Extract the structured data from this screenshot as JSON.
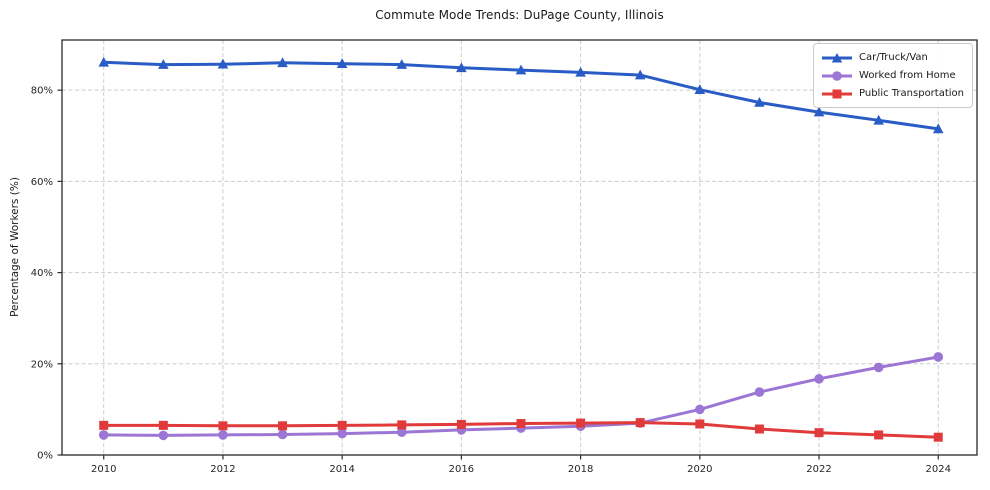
{
  "chart_data": {
    "type": "line",
    "title": "Commute Mode Trends: DuPage County, Illinois",
    "xlabel": "",
    "ylabel": "Percentage of Workers (%)",
    "x": [
      2010,
      2011,
      2012,
      2013,
      2014,
      2015,
      2016,
      2017,
      2018,
      2019,
      2020,
      2021,
      2022,
      2023,
      2024
    ],
    "series": [
      {
        "name": "Car/Truck/Van",
        "color": "#2a5cc5",
        "marker": "triangle",
        "values": [
          86.1,
          85.6,
          85.7,
          86.0,
          85.8,
          85.6,
          84.9,
          84.4,
          83.9,
          83.3,
          80.1,
          77.3,
          75.2,
          73.4,
          71.5
        ]
      },
      {
        "name": "Worked from Home",
        "color": "#9b76d4",
        "marker": "circle",
        "values": [
          4.4,
          4.3,
          4.4,
          4.5,
          4.7,
          5.0,
          5.5,
          5.9,
          6.3,
          7.0,
          10.0,
          13.8,
          16.7,
          19.2,
          21.5
        ]
      },
      {
        "name": "Public Transportation",
        "color": "#e03a3a",
        "marker": "square",
        "values": [
          6.5,
          6.5,
          6.4,
          6.4,
          6.5,
          6.6,
          6.7,
          6.9,
          7.0,
          7.1,
          6.8,
          5.7,
          4.9,
          4.4,
          3.9
        ]
      }
    ],
    "x_ticks": [
      2010,
      2012,
      2014,
      2016,
      2018,
      2020,
      2022,
      2024
    ],
    "x_tick_labels": [
      "2010",
      "2012",
      "2014",
      "2016",
      "2018",
      "2020",
      "2022",
      "2024"
    ],
    "y_ticks": [
      0,
      20,
      40,
      60,
      80
    ],
    "y_tick_labels": [
      "0%",
      "20%",
      "40%",
      "60%",
      "80%"
    ],
    "xlim": [
      2009.3,
      2024.65
    ],
    "ylim": [
      0,
      91
    ],
    "grid": true,
    "legend_position": "top-right",
    "colors": {
      "grid": "#cccccc",
      "spine": "#2a2a2a",
      "tick_text": "#262626",
      "background": "#ffffff"
    }
  }
}
